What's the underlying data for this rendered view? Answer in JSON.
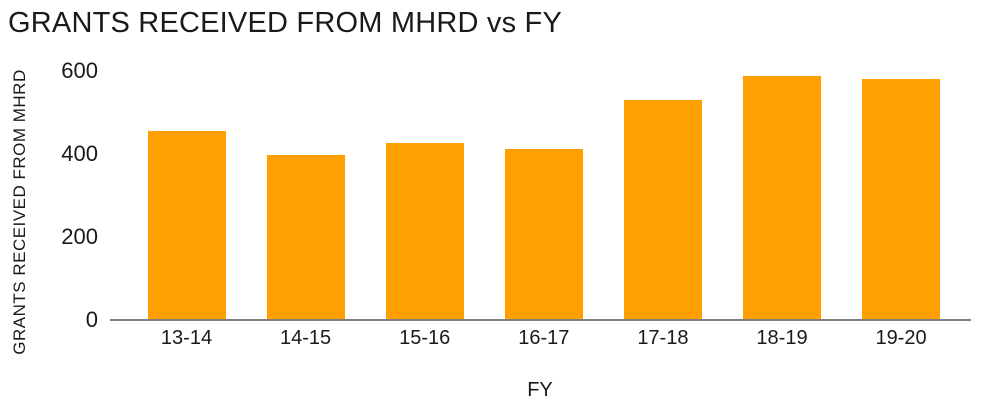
{
  "chart_data": {
    "type": "bar",
    "title": "GRANTS RECEIVED FROM MHRD vs FY",
    "xlabel": "FY",
    "ylabel": "GRANTS RECEIVED FROM MHRD",
    "categories": [
      "13-14",
      "14-15",
      "15-16",
      "16-17",
      "17-18",
      "18-19",
      "19-20"
    ],
    "values": [
      454,
      395,
      425,
      410,
      528,
      585,
      578
    ],
    "ylim": [
      0,
      600
    ],
    "yticks": [
      0,
      200,
      400,
      600
    ],
    "grid": false,
    "legend": false,
    "bar_color": "#FFA000",
    "axis_line_color": "#7F7F7F",
    "text_color": "#1A1A1A",
    "background_color": "#FFFFFF"
  }
}
